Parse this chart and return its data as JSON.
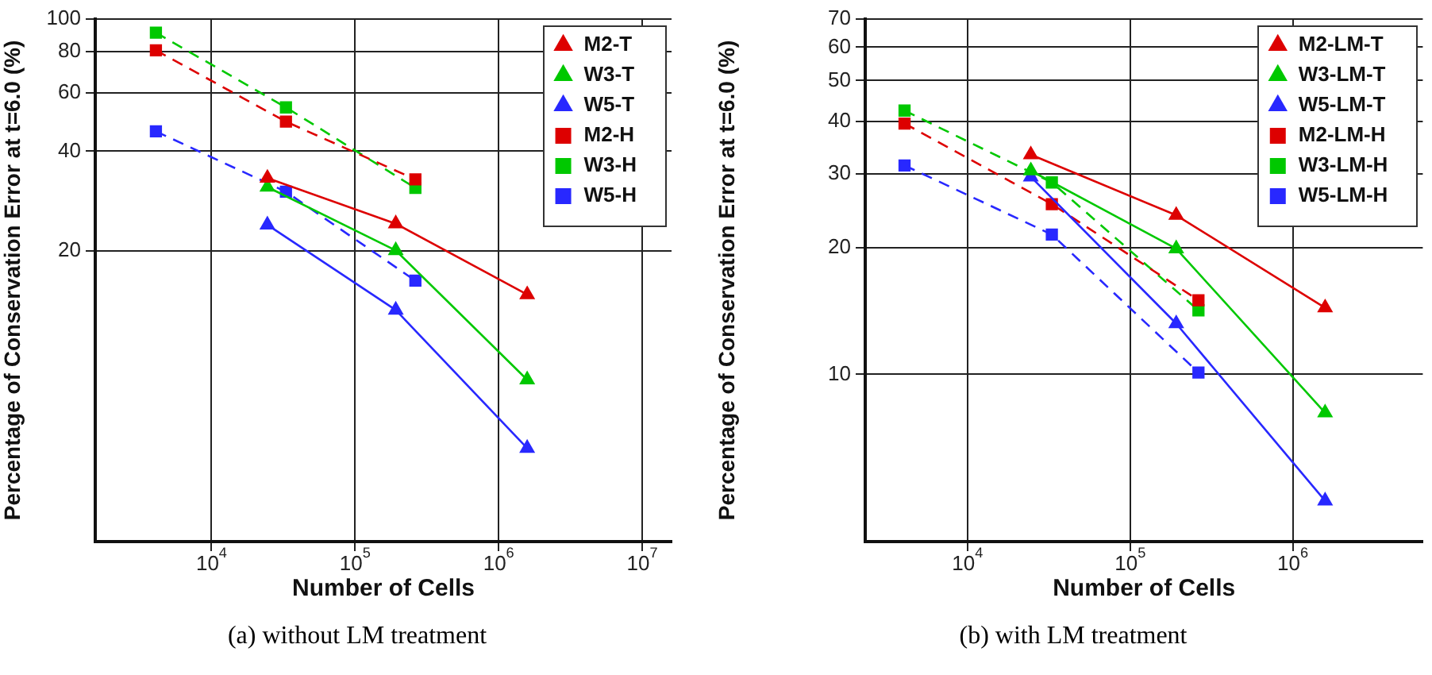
{
  "chart_data": [
    {
      "type": "line",
      "xlabel": "Number of Cells",
      "ylabel": "Percentage of Conservation Error at t=6.0 (%)",
      "log": "xy",
      "grid": true,
      "legend": "top right",
      "xlim": [
        1550,
        16000000
      ],
      "xticks": [
        {
          "value": 10000,
          "label": "10$^{4}$"
        },
        {
          "value": 100000,
          "label": "10$^{5}$"
        },
        {
          "value": 1000000,
          "label": "10$^{6}$"
        },
        {
          "value": 10000000,
          "label": "10$^{7}$"
        }
      ],
      "ylim": [
        2.67,
        100
      ],
      "yticks": [
        20,
        40,
        60,
        80,
        100
      ],
      "annotations": [
        "(a) without LM treatment"
      ],
      "series": [
        {
          "name": "M2-T",
          "color": "#dd0000",
          "marker": "triangle",
          "line_style": "solid",
          "x": [
            24500,
            192000,
            1580000
          ],
          "values": [
            33.2,
            24.2,
            14.8
          ]
        },
        {
          "name": "W3-T",
          "color": "#00c800",
          "marker": "triangle",
          "line_style": "solid",
          "x": [
            24500,
            192000,
            1580000
          ],
          "values": [
            31.2,
            20.1,
            8.2
          ]
        },
        {
          "name": "W5-T",
          "color": "#2828ff",
          "marker": "triangle",
          "line_style": "solid",
          "x": [
            24500,
            192000,
            1580000
          ],
          "values": [
            24.0,
            13.3,
            5.1
          ]
        },
        {
          "name": "M2-H",
          "color": "#dd0000",
          "marker": "square",
          "line_style": "dashed",
          "x": [
            4100,
            33000,
            263000
          ],
          "values": [
            80.5,
            49.1,
            32.9
          ]
        },
        {
          "name": "W3-H",
          "color": "#00c800",
          "marker": "square",
          "line_style": "dashed",
          "x": [
            4100,
            33000,
            263000
          ],
          "values": [
            91,
            54.2,
            31.0
          ]
        },
        {
          "name": "W5-H",
          "color": "#2828ff",
          "marker": "square",
          "line_style": "dashed",
          "x": [
            4100,
            33000,
            263000
          ],
          "values": [
            45.9,
            30.2,
            16.3
          ]
        }
      ]
    },
    {
      "type": "line",
      "xlabel": "Number of Cells",
      "ylabel": "Percentage of Conservation Error at t=6.0 (%)",
      "log": "xy",
      "grid": true,
      "legend": "top right",
      "xlim": [
        2350,
        6300000
      ],
      "xticks": [
        {
          "value": 10000,
          "label": "10$^{4}$"
        },
        {
          "value": 100000,
          "label": "10$^{5}$"
        },
        {
          "value": 1000000,
          "label": "10$^{6}$"
        }
      ],
      "ylim": [
        4.0,
        70
      ],
      "yticks": [
        10,
        20,
        30,
        40,
        50,
        60,
        70
      ],
      "annotations": [
        "(b) with LM treatment"
      ],
      "series": [
        {
          "name": "M2-LM-T",
          "color": "#dd0000",
          "marker": "triangle",
          "line_style": "solid",
          "x": [
            24500,
            192000,
            1580000
          ],
          "values": [
            33.3,
            23.9,
            14.4
          ]
        },
        {
          "name": "W3-LM-T",
          "color": "#00c800",
          "marker": "triangle",
          "line_style": "solid",
          "x": [
            24500,
            192000,
            1580000
          ],
          "values": [
            30.5,
            19.9,
            8.1
          ]
        },
        {
          "name": "W5-LM-T",
          "color": "#2828ff",
          "marker": "triangle",
          "line_style": "solid",
          "x": [
            24500,
            192000,
            1580000
          ],
          "values": [
            29.5,
            13.2,
            5.0
          ]
        },
        {
          "name": "M2-LM-H",
          "color": "#dd0000",
          "marker": "square",
          "line_style": "dashed",
          "x": [
            4100,
            33000,
            263000
          ],
          "values": [
            39.5,
            25.4,
            15.0
          ]
        },
        {
          "name": "W3-LM-H",
          "color": "#00c800",
          "marker": "square",
          "line_style": "dashed",
          "x": [
            4100,
            33000,
            263000
          ],
          "values": [
            42.4,
            28.6,
            14.2
          ]
        },
        {
          "name": "W5-LM-H",
          "color": "#2828ff",
          "marker": "square",
          "line_style": "dashed",
          "x": [
            4100,
            33000,
            263000
          ],
          "values": [
            31.4,
            21.5,
            10.1
          ]
        }
      ]
    }
  ]
}
